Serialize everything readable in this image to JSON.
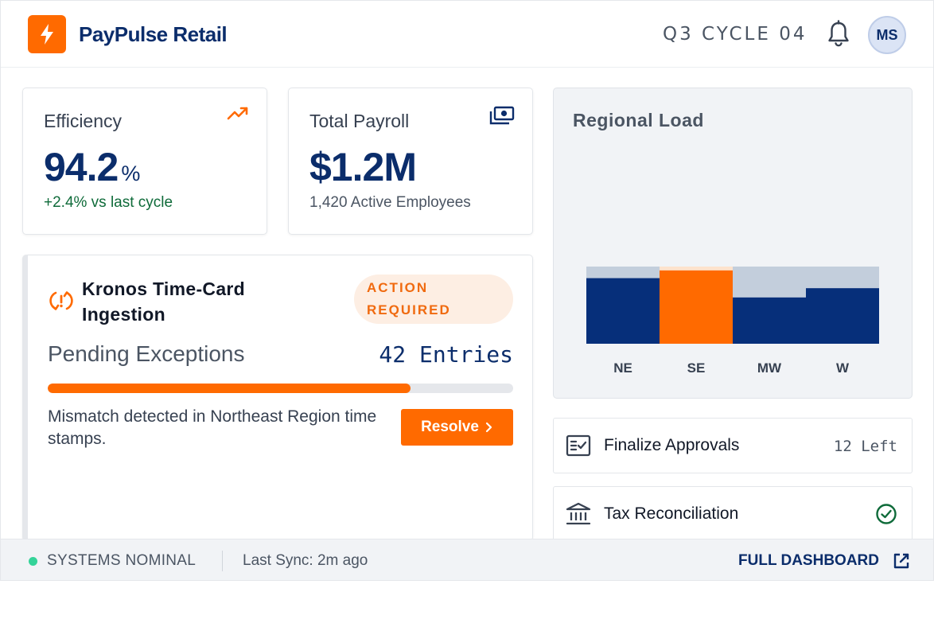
{
  "header": {
    "brand": "PayPulse Retail",
    "cycle": "Q3 CYCLE 04",
    "avatar_initials": "MS"
  },
  "efficiency": {
    "label": "Efficiency",
    "value": "94.2",
    "unit": "%",
    "delta": "+2.4% vs last cycle",
    "icon": "trending-up-icon"
  },
  "payroll": {
    "label": "Total Payroll",
    "value": "$1.2M",
    "sub": "1,420 Active Employees",
    "icon": "money-icon"
  },
  "alert": {
    "title": "Kronos Time-Card Ingestion",
    "badge_line1": "ACTION",
    "badge_line2": "REQUIRED",
    "pending_label": "Pending Exceptions",
    "pending_count": "42 Entries",
    "progress": 0.78,
    "description": "Mismatch detected in Northeast Region time stamps.",
    "resolve_label": "Resolve",
    "icon": "sync-alert-icon"
  },
  "regional": {
    "title": "Regional Load"
  },
  "chart_data": {
    "type": "bar",
    "title": "Regional Load",
    "categories": [
      "NE",
      "SE",
      "MW",
      "W"
    ],
    "series": [
      {
        "values": [
          85,
          95,
          60,
          72
        ]
      },
      {
        "values": [
          15,
          5,
          40,
          28
        ]
      }
    ],
    "stacked": true,
    "highlight": "SE",
    "colors": {
      "primary": "#062f7a",
      "remainder": "#c3cedc",
      "highlight": "#ff6a00",
      "highlight_remainder": "#fde2cc"
    },
    "ylim": [
      0,
      100
    ],
    "grid": false
  },
  "tasks": [
    {
      "label": "Finalize Approvals",
      "meta": "12 Left",
      "icon": "checklist-icon"
    },
    {
      "label": "Tax Reconciliation",
      "icon": "bank-icon",
      "status_icon": "check-circle-icon"
    }
  ],
  "footer": {
    "status": "SYSTEMS NOMINAL",
    "sync": "Last Sync: 2m ago",
    "link": "FULL DASHBOARD"
  },
  "colors": {
    "accent": "#ff6a00",
    "brand_navy": "#0b2d6b",
    "success_green": "#0f6b3a",
    "status_dot": "#34d399"
  }
}
